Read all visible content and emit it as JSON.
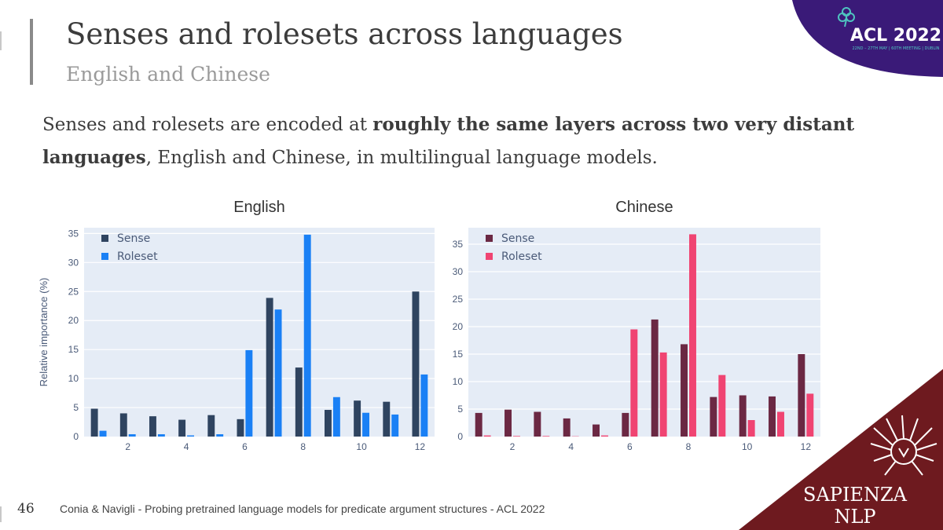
{
  "slide": {
    "title": "Senses and rolesets across languages",
    "subtitle": "English and Chinese",
    "body_prefix": "Senses and rolesets are encoded at ",
    "body_bold": "roughly the same layers across two very distant languages",
    "body_suffix": ", English and Chinese, in multilingual language models.",
    "page_number": "46",
    "footer": "Conia & Navigli - Probing pretrained language models for predicate argument structures - ACL 2022"
  },
  "branding": {
    "acl_title": "ACL 2022",
    "acl_subtitle": "22ND – 27TH MAY | 60TH MEETING | DUBLIN",
    "lab_name_line1": "SAPIENZA",
    "lab_name_line2": "NLP",
    "colors": {
      "acl_purple": "#3a1a78",
      "sapienza_red": "#6e1a1f"
    }
  },
  "chart_data": [
    {
      "type": "bar",
      "title": "English",
      "ylabel": "Relative importance (%)",
      "xlabel": "",
      "x": [
        1,
        2,
        3,
        4,
        5,
        6,
        7,
        8,
        9,
        10,
        11,
        12
      ],
      "xticks": [
        2,
        4,
        6,
        8,
        10,
        12
      ],
      "yticks": [
        0,
        5,
        10,
        15,
        20,
        25,
        30,
        35
      ],
      "ylim": [
        0,
        36
      ],
      "grid": true,
      "legend": "top-left",
      "series": [
        {
          "name": "Sense",
          "color": "#2f4460",
          "values": [
            4.8,
            4.0,
            3.5,
            2.9,
            3.7,
            3.0,
            23.9,
            11.9,
            4.6,
            6.2,
            6.0,
            25.0
          ]
        },
        {
          "name": "Roleset",
          "color": "#1a80f5",
          "values": [
            1.0,
            0.4,
            0.4,
            0.2,
            0.4,
            14.9,
            21.9,
            34.8,
            6.8,
            4.1,
            3.8,
            10.7
          ]
        }
      ]
    },
    {
      "type": "bar",
      "title": "Chinese",
      "ylabel": "",
      "xlabel": "",
      "x": [
        1,
        2,
        3,
        4,
        5,
        6,
        7,
        8,
        9,
        10,
        11,
        12
      ],
      "xticks": [
        2,
        4,
        6,
        8,
        10,
        12
      ],
      "yticks": [
        0,
        5,
        10,
        15,
        20,
        25,
        30,
        35
      ],
      "ylim": [
        0,
        38
      ],
      "grid": true,
      "legend": "top-left",
      "series": [
        {
          "name": "Sense",
          "color": "#6b2843",
          "values": [
            4.3,
            4.9,
            4.5,
            3.3,
            2.2,
            4.3,
            21.3,
            16.8,
            7.2,
            7.5,
            7.3,
            15.0
          ]
        },
        {
          "name": "Roleset",
          "color": "#f04472",
          "values": [
            0.2,
            0.1,
            0.1,
            0.05,
            0.2,
            19.5,
            15.3,
            36.8,
            11.2,
            3.0,
            4.5,
            7.8
          ]
        }
      ]
    }
  ]
}
